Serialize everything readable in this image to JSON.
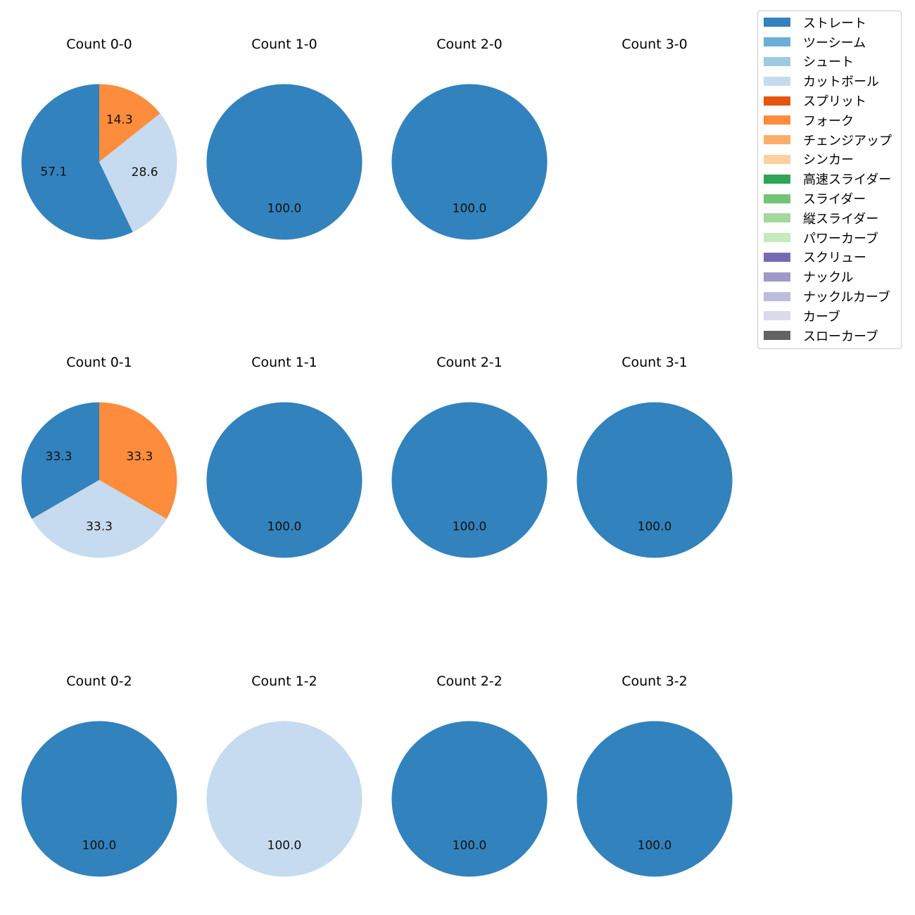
{
  "chart_data": {
    "type": "pie",
    "legend_position": "top-right",
    "legend": [
      {
        "name": "ストレート",
        "color": "#3282bd"
      },
      {
        "name": "ツーシーム",
        "color": "#6baed6"
      },
      {
        "name": "シュート",
        "color": "#9ecae1"
      },
      {
        "name": "カットボール",
        "color": "#c6dbef"
      },
      {
        "name": "スプリット",
        "color": "#e6550d"
      },
      {
        "name": "フォーク",
        "color": "#fd8d3c"
      },
      {
        "name": "チェンジアップ",
        "color": "#fdae6b"
      },
      {
        "name": "シンカー",
        "color": "#fdd0a2"
      },
      {
        "name": "高速スライダー",
        "color": "#31a354"
      },
      {
        "name": "スライダー",
        "color": "#74c476"
      },
      {
        "name": "縦スライダー",
        "color": "#a1d99b"
      },
      {
        "name": "パワーカーブ",
        "color": "#c7e9c0"
      },
      {
        "name": "スクリュー",
        "color": "#756bb1"
      },
      {
        "name": "ナックル",
        "color": "#9e9ac8"
      },
      {
        "name": "ナックルカーブ",
        "color": "#bcbddc"
      },
      {
        "name": "カーブ",
        "color": "#dadaeb"
      },
      {
        "name": "スローカーブ",
        "color": "#636363"
      }
    ],
    "charts": [
      {
        "title": "Count 0-0",
        "slices": [
          {
            "pitch": "ストレート",
            "value": 57.1
          },
          {
            "pitch": "カットボール",
            "value": 28.6
          },
          {
            "pitch": "フォーク",
            "value": 14.3
          }
        ]
      },
      {
        "title": "Count 1-0",
        "slices": [
          {
            "pitch": "ストレート",
            "value": 100.0
          }
        ]
      },
      {
        "title": "Count 2-0",
        "slices": [
          {
            "pitch": "ストレート",
            "value": 100.0
          }
        ]
      },
      {
        "title": "Count 3-0",
        "slices": []
      },
      {
        "title": "Count 0-1",
        "slices": [
          {
            "pitch": "ストレート",
            "value": 33.3
          },
          {
            "pitch": "カットボール",
            "value": 33.3
          },
          {
            "pitch": "フォーク",
            "value": 33.3
          }
        ]
      },
      {
        "title": "Count 1-1",
        "slices": [
          {
            "pitch": "ストレート",
            "value": 100.0
          }
        ]
      },
      {
        "title": "Count 2-1",
        "slices": [
          {
            "pitch": "ストレート",
            "value": 100.0
          }
        ]
      },
      {
        "title": "Count 3-1",
        "slices": [
          {
            "pitch": "ストレート",
            "value": 100.0
          }
        ]
      },
      {
        "title": "Count 0-2",
        "slices": [
          {
            "pitch": "ストレート",
            "value": 100.0
          }
        ]
      },
      {
        "title": "Count 1-2",
        "slices": [
          {
            "pitch": "カットボール",
            "value": 100.0
          }
        ]
      },
      {
        "title": "Count 2-2",
        "slices": [
          {
            "pitch": "ストレート",
            "value": 100.0
          }
        ]
      },
      {
        "title": "Count 3-2",
        "slices": [
          {
            "pitch": "ストレート",
            "value": 100.0
          }
        ]
      }
    ]
  }
}
